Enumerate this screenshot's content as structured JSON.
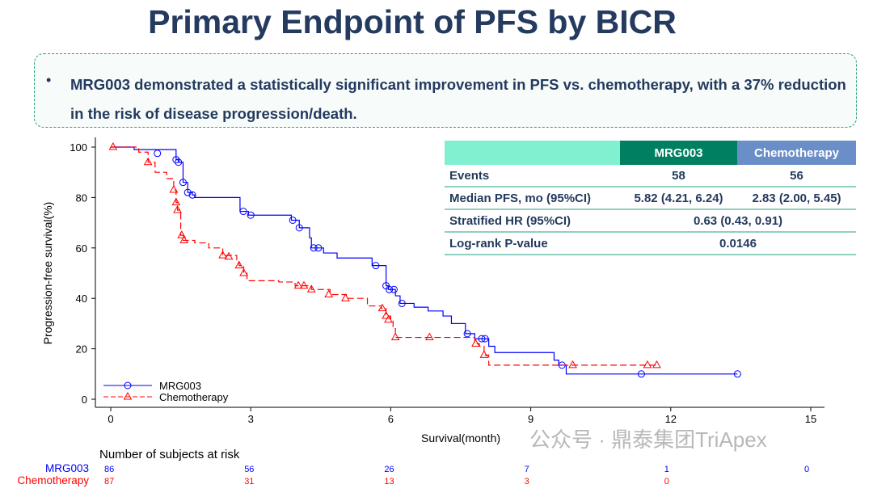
{
  "title": "Primary Endpoint of PFS by BICR",
  "bullet": "MRG003 demonstrated a statistically significant improvement in PFS vs. chemotherapy, with a 37% reduction in the risk of disease progression/death.",
  "table": {
    "headers": [
      "",
      "MRG003",
      "Chemotherapy"
    ],
    "header_colors": [
      "#80f0d0",
      "#008060",
      "#6a8fc8"
    ],
    "rows": [
      [
        "Events",
        "58",
        "56"
      ],
      [
        "Median PFS, mo (95%CI)",
        "5.82 (4.21, 6.24)",
        "2.83 (2.00, 5.45)"
      ],
      [
        "Stratified HR (95%CI)",
        "0.63 (0.43, 0.91)"
      ],
      [
        "Log-rank P-value",
        "0.0146"
      ]
    ]
  },
  "watermark": "公众号 · 鼎泰集团TriApex",
  "chart_data": {
    "type": "line",
    "xlabel": "Survival(month)",
    "ylabel": "Progression-free survival(%)",
    "xlim": [
      0,
      15
    ],
    "ylim": [
      0,
      100
    ],
    "xticks": [
      0,
      3,
      6,
      9,
      12,
      15
    ],
    "yticks": [
      0,
      20,
      40,
      60,
      80,
      100
    ],
    "legend_placement": "bottom-left",
    "series": [
      {
        "name": "MRG003",
        "color": "#0000ff",
        "marker": "circle",
        "steps": [
          [
            0,
            100
          ],
          [
            0.5,
            99
          ],
          [
            1.4,
            95
          ],
          [
            1.45,
            94
          ],
          [
            1.55,
            86
          ],
          [
            1.65,
            82
          ],
          [
            1.75,
            81
          ],
          [
            1.8,
            80
          ],
          [
            2.77,
            74.5
          ],
          [
            2.95,
            73
          ],
          [
            3.87,
            71
          ],
          [
            4.04,
            68
          ],
          [
            4.26,
            64
          ],
          [
            4.3,
            60
          ],
          [
            4.56,
            58
          ],
          [
            4.85,
            56
          ],
          [
            5.6,
            53
          ],
          [
            5.9,
            45
          ],
          [
            5.95,
            43.5
          ],
          [
            6.1,
            41
          ],
          [
            6.2,
            38
          ],
          [
            6.5,
            36.5
          ],
          [
            6.8,
            35
          ],
          [
            7.12,
            33
          ],
          [
            7.3,
            30
          ],
          [
            7.6,
            26
          ],
          [
            7.8,
            24
          ],
          [
            8.1,
            21
          ],
          [
            8.23,
            18.5
          ],
          [
            9.5,
            15.5
          ],
          [
            9.6,
            13.5
          ],
          [
            9.76,
            10
          ],
          [
            13.43,
            10
          ]
        ],
        "censors": [
          [
            1.0,
            97.5
          ],
          [
            1.4,
            95
          ],
          [
            1.45,
            94
          ],
          [
            1.55,
            86
          ],
          [
            1.65,
            82
          ],
          [
            1.75,
            81
          ],
          [
            2.84,
            74.5
          ],
          [
            3.0,
            73
          ],
          [
            3.9,
            71
          ],
          [
            4.04,
            68
          ],
          [
            4.35,
            60
          ],
          [
            4.45,
            60
          ],
          [
            5.68,
            53
          ],
          [
            5.9,
            45
          ],
          [
            5.97,
            43.5
          ],
          [
            6.07,
            43.5
          ],
          [
            6.24,
            38
          ],
          [
            7.64,
            26
          ],
          [
            7.95,
            24
          ],
          [
            8.02,
            24
          ],
          [
            9.67,
            13.5
          ],
          [
            11.37,
            10
          ],
          [
            13.43,
            10
          ]
        ]
      },
      {
        "name": "Chemotherapy",
        "color": "#ff0000",
        "marker": "triangle",
        "steps": [
          [
            0,
            100
          ],
          [
            0.6,
            98
          ],
          [
            0.8,
            94
          ],
          [
            0.95,
            90
          ],
          [
            1.2,
            87.5
          ],
          [
            1.35,
            83
          ],
          [
            1.4,
            78
          ],
          [
            1.43,
            75
          ],
          [
            1.5,
            65
          ],
          [
            1.55,
            63
          ],
          [
            1.8,
            62
          ],
          [
            2.1,
            60
          ],
          [
            2.4,
            57
          ],
          [
            2.7,
            55
          ],
          [
            2.75,
            53
          ],
          [
            2.85,
            50
          ],
          [
            2.92,
            47
          ],
          [
            3.6,
            46.5
          ],
          [
            3.95,
            45
          ],
          [
            4.3,
            43.5
          ],
          [
            4.7,
            41.5
          ],
          [
            5.05,
            40
          ],
          [
            5.5,
            37
          ],
          [
            5.8,
            36
          ],
          [
            5.9,
            33
          ],
          [
            6.0,
            31.5
          ],
          [
            6.05,
            28
          ],
          [
            6.1,
            24.5
          ],
          [
            7.8,
            22
          ],
          [
            7.9,
            21
          ],
          [
            8.0,
            17.5
          ],
          [
            8.1,
            13.5
          ],
          [
            11.7,
            13.5
          ]
        ],
        "censors": [
          [
            0.05,
            100
          ],
          [
            0.8,
            94
          ],
          [
            1.35,
            83
          ],
          [
            1.4,
            78
          ],
          [
            1.43,
            75
          ],
          [
            1.52,
            65
          ],
          [
            1.57,
            63
          ],
          [
            2.4,
            57
          ],
          [
            2.53,
            56.5
          ],
          [
            2.75,
            53
          ],
          [
            2.85,
            50
          ],
          [
            4.02,
            45
          ],
          [
            4.14,
            45
          ],
          [
            4.3,
            43.5
          ],
          [
            4.67,
            41.5
          ],
          [
            5.03,
            40
          ],
          [
            5.82,
            36
          ],
          [
            5.9,
            33
          ],
          [
            5.95,
            31.5
          ],
          [
            6.1,
            24.5
          ],
          [
            6.83,
            24.5
          ],
          [
            7.82,
            22
          ],
          [
            8.0,
            17.5
          ],
          [
            9.9,
            13.5
          ],
          [
            11.5,
            13.5
          ],
          [
            11.7,
            13.5
          ]
        ]
      }
    ],
    "risk_table": {
      "title": "Number of subjects at risk",
      "times": [
        0,
        3,
        6,
        9,
        12,
        15
      ],
      "rows": [
        {
          "name": "MRG003",
          "values": [
            86,
            56,
            26,
            7,
            1,
            0
          ]
        },
        {
          "name": "Chemotherapy",
          "values": [
            87,
            31,
            13,
            3,
            0
          ]
        }
      ]
    }
  }
}
